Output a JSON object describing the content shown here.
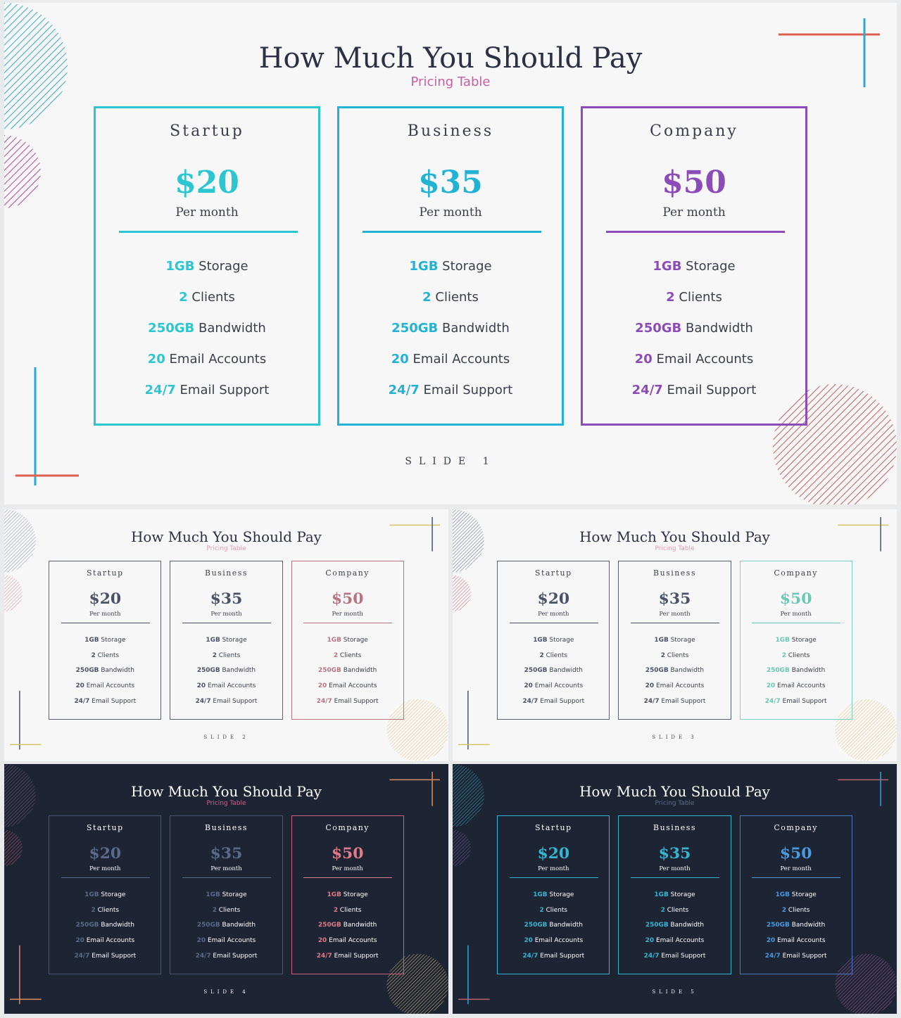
{
  "title": "How Much You Should Pay",
  "subtitle": "Pricing Table",
  "plans": [
    {
      "name": "Startup",
      "price": "$20",
      "period": "Per month"
    },
    {
      "name": "Business",
      "price": "$35",
      "period": "Per month"
    },
    {
      "name": "Company",
      "price": "$50",
      "period": "Per month"
    }
  ],
  "features": [
    {
      "value": "1GB",
      "label": "Storage"
    },
    {
      "value": "2",
      "label": "Clients"
    },
    {
      "value": "250GB",
      "label": "Bandwidth"
    },
    {
      "value": "20",
      "label": "Email Accounts"
    },
    {
      "value": "24/7",
      "label": "Email Support"
    }
  ],
  "slides": [
    {
      "label": "SLIDE 1",
      "theme": "light",
      "bg": "#f7f7f8",
      "title_color": "#2b3142",
      "subtitle_color": "#c860a0",
      "text_color": "#3a3f4a",
      "card_colors": [
        "#2cc6d0",
        "#22b3d4",
        "#8b4cb8"
      ],
      "accent_colors": [
        "#2cc6d0",
        "#22b3d4",
        "#8b4cb8"
      ],
      "circle_tl": "#35a9c8",
      "circle_ml": "#b04a98",
      "circle_br": "#c45c5c",
      "line_color_a": "#e06050",
      "line_color_b": "#2aa8d8"
    },
    {
      "label": "SLIDE 2",
      "theme": "light",
      "bg": "#f7f7f8",
      "title_color": "#2b3142",
      "subtitle_color": "#e69ab4",
      "text_color": "#3a3f4a",
      "card_colors": [
        "#5a6273",
        "#5a6273",
        "#b87480"
      ],
      "accent_colors": [
        "#4a5366",
        "#4a5366",
        "#b87480"
      ],
      "circle_tl": "#8a8fa8",
      "circle_ml": "#d08a96",
      "circle_br": "#e6c27a",
      "line_color_a": "#d6c46a",
      "line_color_b": "#4a5366"
    },
    {
      "label": "SLIDE 3",
      "theme": "light",
      "bg": "#f7f7f8",
      "title_color": "#2b3142",
      "subtitle_color": "#e69ab4",
      "text_color": "#3a3f4a",
      "card_colors": [
        "#5a6273",
        "#5a6273",
        "#7fd0c0"
      ],
      "accent_colors": [
        "#4a5366",
        "#4a5366",
        "#6cc7b4"
      ],
      "circle_tl": "#5a6a8a",
      "circle_ml": "#d05a6a",
      "circle_br": "#e6c27a",
      "line_color_a": "#d6c46a",
      "line_color_b": "#4a5366"
    },
    {
      "label": "SLIDE 4",
      "theme": "dark",
      "bg": "#1d2433",
      "title_color": "#ffffff",
      "subtitle_color": "#d0608a",
      "text_color": "#ffffff",
      "card_colors": [
        "#4a5670",
        "#4a5670",
        "#d0607a"
      ],
      "accent_colors": [
        "#5a6a88",
        "#5a6a88",
        "#e07a8a"
      ],
      "circle_tl": "#7a5a8a",
      "circle_ml": "#c05a6a",
      "circle_br": "#e6c27a",
      "line_color_a": "#e08a60",
      "line_color_b": "#e08a60"
    },
    {
      "label": "SLIDE 5",
      "theme": "dark",
      "bg": "#1d2433",
      "title_color": "#ffffff",
      "subtitle_color": "#5a6a88",
      "text_color": "#ffffff",
      "card_colors": [
        "#35b6d0",
        "#35b6d0",
        "#4a78c0"
      ],
      "accent_colors": [
        "#35b6d0",
        "#35b6d0",
        "#4a9ae0"
      ],
      "circle_tl": "#35a9c8",
      "circle_ml": "#7a5aa0",
      "circle_br": "#b060a8",
      "line_color_a": "#c06070",
      "line_color_b": "#2aa8d8"
    }
  ]
}
